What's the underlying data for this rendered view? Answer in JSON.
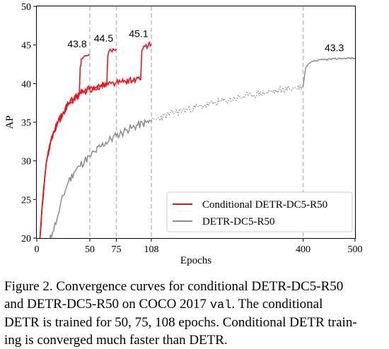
{
  "chart_data": {
    "type": "line",
    "title": "",
    "xlabel": "Epochs",
    "ylabel": "AP",
    "xlim": [
      0,
      500
    ],
    "ylim": [
      20,
      50
    ],
    "grid": false,
    "x_tick_labels": [
      "0",
      "50",
      "75",
      "108",
      "400",
      "500"
    ],
    "x_tick_values": [
      0,
      50,
      75,
      108,
      400,
      500
    ],
    "y_ticks": [
      20,
      25,
      30,
      35,
      40,
      45,
      50
    ],
    "vertical_dashed_lines_at": [
      50,
      75,
      108,
      400
    ],
    "x_scale": "piecewise linear: 0-108 expanded, 108-500 compressed",
    "legend_position": "lower-right",
    "series": [
      {
        "name": "Conditional DETR-DC5-R50",
        "color": "#e8141c",
        "runs": [
          {
            "epochs": 50,
            "x": [
              3,
              5,
              8,
              10,
              13,
              16,
              20,
              25,
              30,
              35,
              40,
              41,
              42,
              45,
              50
            ],
            "y": [
              20,
              24,
              28.5,
              30.5,
              32.5,
              33.8,
              35,
              36.3,
              37.4,
              38,
              38.5,
              42.2,
              43.2,
              43.6,
              43.8
            ]
          },
          {
            "epochs": 75,
            "x": [
              3,
              5,
              8,
              10,
              13,
              16,
              20,
              25,
              30,
              35,
              40,
              45,
              50,
              55,
              60,
              66,
              67,
              70,
              75
            ],
            "y": [
              20,
              24,
              28.5,
              30.5,
              32.5,
              33.8,
              35,
              36.3,
              37.4,
              38,
              38.6,
              39,
              39.2,
              39.5,
              39.7,
              39.9,
              43.6,
              44.3,
              44.5
            ]
          },
          {
            "epochs": 108,
            "x": [
              3,
              5,
              8,
              10,
              13,
              16,
              20,
              25,
              30,
              35,
              40,
              45,
              50,
              60,
              70,
              75,
              80,
              90,
              98,
              99,
              102,
              108
            ],
            "y": [
              20,
              24,
              28.5,
              30.5,
              32.5,
              33.8,
              35,
              36.3,
              37.4,
              38,
              38.6,
              39,
              39.3,
              39.7,
              40,
              40.1,
              40.2,
              40.4,
              40.5,
              44.2,
              44.8,
              45.1
            ]
          }
        ],
        "final_labels": [
          {
            "text": "43.8",
            "x": 50,
            "y": 43.8
          },
          {
            "text": "44.5",
            "x": 75,
            "y": 44.5
          },
          {
            "text": "45.1",
            "x": 108,
            "y": 45.1
          }
        ]
      },
      {
        "name": "DETR-DC5-R50",
        "color": "#8c8c8c",
        "solid": {
          "x": [
            12,
            15,
            20,
            25,
            30,
            35,
            40,
            45,
            50,
            55,
            60,
            65,
            70,
            75,
            80,
            85,
            90,
            95,
            100,
            108
          ],
          "y": [
            19.5,
            20.8,
            23,
            25.5,
            27.3,
            28.5,
            29.3,
            30,
            30.6,
            31.2,
            31.8,
            32.4,
            32.8,
            33.2,
            33.6,
            34,
            34.3,
            34.6,
            34.8,
            35.1
          ]
        },
        "dotted": {
          "x": [
            108,
            150,
            200,
            250,
            300,
            350,
            400
          ],
          "y": [
            35.1,
            36.2,
            37,
            37.8,
            38.5,
            39.1,
            39.6
          ]
        },
        "final": {
          "x": [
            400,
            405,
            410,
            420,
            440,
            460,
            480,
            500
          ],
          "y": [
            39.6,
            42,
            42.5,
            42.9,
            43.1,
            43.2,
            43.3,
            43.3
          ]
        },
        "final_label": {
          "text": "43.3",
          "x": 460,
          "y": 43.3
        }
      }
    ]
  },
  "caption": {
    "line1": "Figure 2. Convergence curves for conditional DETR-DC5-R50",
    "line2_prefix": "and DETR-DC5-R50 on COCO 2017",
    "line2_mono": "val",
    "line2_suffix": ". The conditional",
    "line3": "DETR is trained for 50, 75, 108 epochs. Conditional DETR train-",
    "line4": "ing is converged much faster than DETR."
  }
}
